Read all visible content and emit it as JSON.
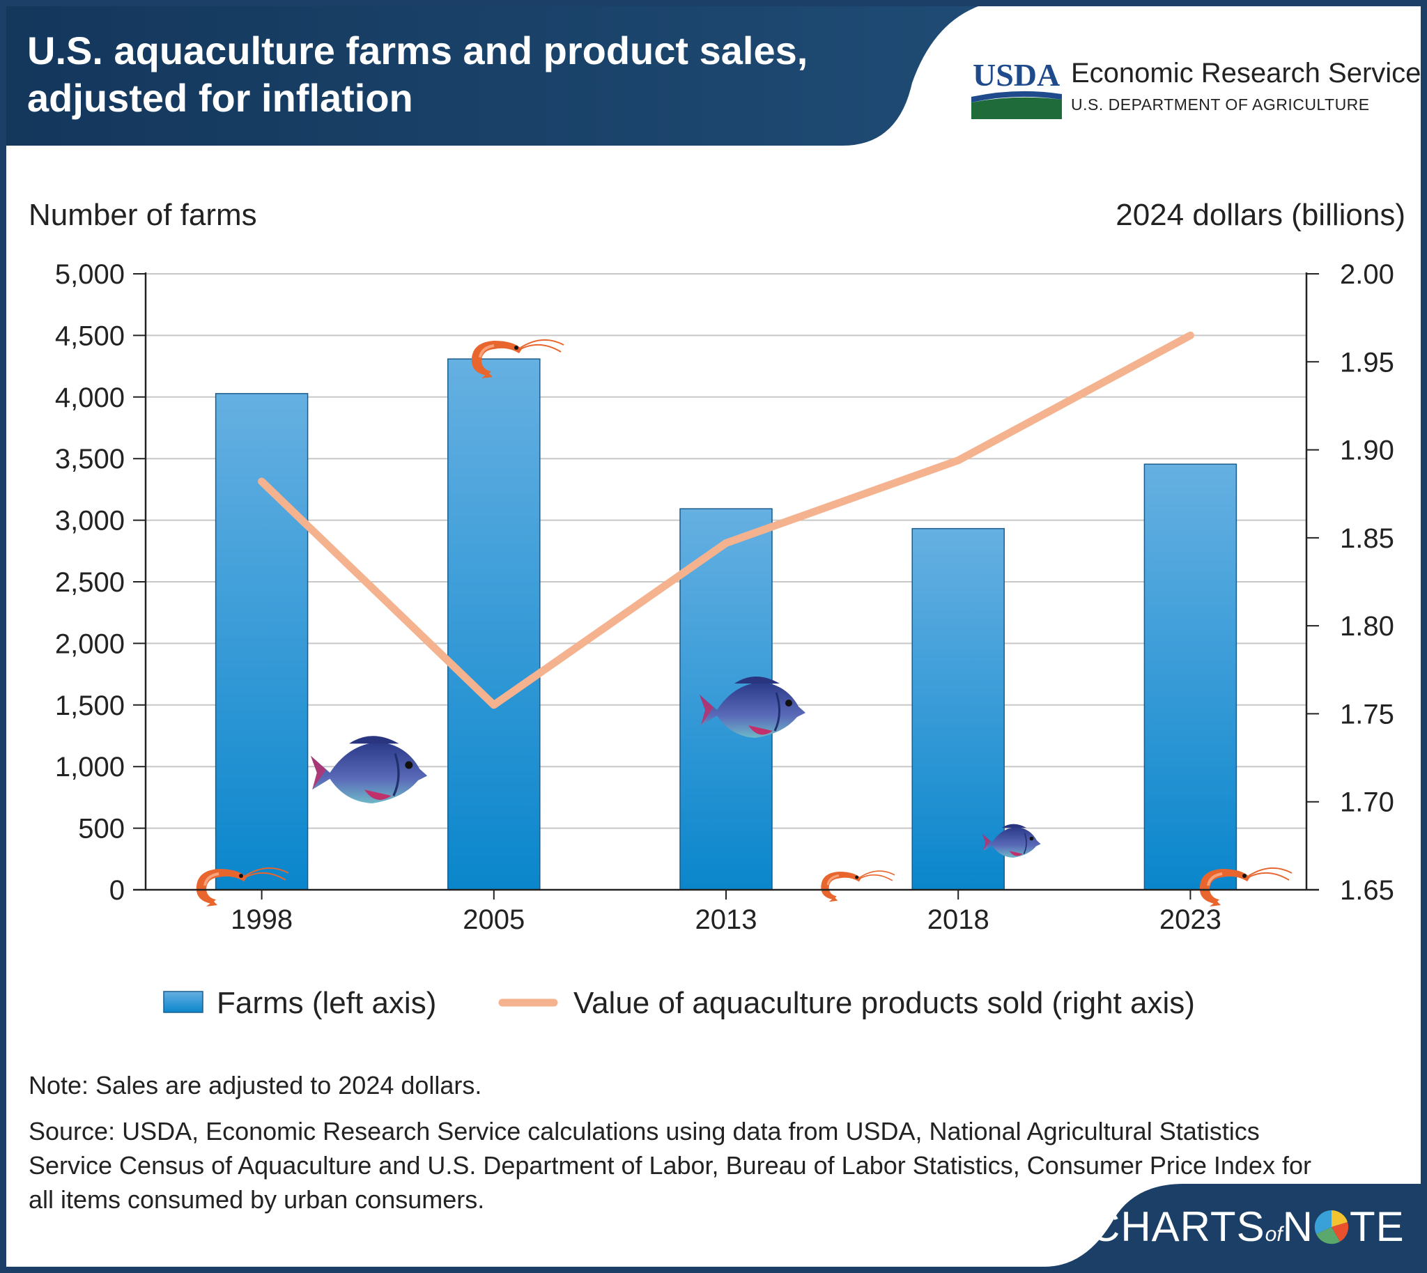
{
  "header": {
    "title": "U.S. aquaculture farms and product sales, adjusted for inflation",
    "logo_text": "USDA",
    "agency": "Economic Research Service",
    "department": "U.S. DEPARTMENT OF AGRICULTURE"
  },
  "colors": {
    "header_bg": "#1b3f66",
    "bar_top": "#66b0e2",
    "bar_bottom": "#0a86cc",
    "line": "#f5b28e",
    "grid": "#c8c8c8"
  },
  "chart_data": {
    "type": "bar",
    "categories": [
      "1998",
      "2005",
      "2013",
      "2018",
      "2023"
    ],
    "series": [
      {
        "name": "Farms (left axis)",
        "type": "bar",
        "axis": "left",
        "values": [
          4028,
          4309,
          3093,
          2932,
          3455
        ]
      },
      {
        "name": "Value of aquaculture products sold (right axis)",
        "type": "line",
        "axis": "right",
        "values": [
          1.882,
          1.755,
          1.847,
          1.894,
          1.965
        ]
      }
    ],
    "ylabel": "Number of farms",
    "y2label": "2024 dollars (billions)",
    "ylim": [
      0,
      5000
    ],
    "y2lim": [
      1.65,
      2.0
    ],
    "yticks": [
      "0",
      "500",
      "1,000",
      "1,500",
      "2,000",
      "2,500",
      "3,000",
      "3,500",
      "4,000",
      "4,500",
      "5,000"
    ],
    "y2ticks": [
      "1.65",
      "1.70",
      "1.75",
      "1.80",
      "1.85",
      "1.90",
      "1.95",
      "2.00"
    ],
    "grid": true,
    "legend_position": "bottom"
  },
  "footer": {
    "note": "Note: Sales are adjusted to 2024 dollars.",
    "source": "Source: USDA, Economic Research Service calculations using data from USDA, National Agricultural Statistics Service Census of Aquaculture and U.S. Department of Labor, Bureau of Labor Statistics, Consumer Price Index for all items consumed by urban consumers.",
    "brand_left": "CHARTS",
    "brand_of": "of",
    "brand_n": "N",
    "brand_right": "TE"
  }
}
